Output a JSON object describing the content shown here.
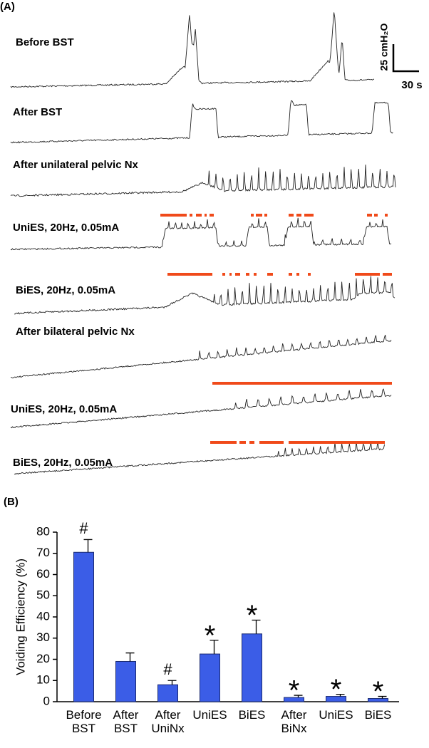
{
  "panel_a": {
    "label": "(A)",
    "trace_labels": [
      "Before BST",
      "After BST",
      "After unilateral pelvic Nx",
      "UniES, 20Hz, 0.05mA",
      "BiES, 20Hz, 0.05mA",
      "After bilateral pelvic Nx",
      "UniES, 20Hz, 0.05mA",
      "BiES, 20Hz, 0.05mA"
    ],
    "scale_y": "25 cmH₂O",
    "scale_x": "30 s"
  },
  "chart_data": {
    "type": "bar",
    "panel_label": "(B)",
    "y_label": "Voiding Efficiency (%)",
    "categories": [
      "Before BST",
      "After BST",
      "After UniNx",
      "UniES",
      "BiES",
      "After BiNx",
      "UniES",
      "BiES"
    ],
    "values": [
      70.5,
      19,
      8,
      22.5,
      32,
      2,
      2.5,
      1.5
    ],
    "errors": [
      6,
      4,
      2,
      6.5,
      6.5,
      1,
      1,
      1
    ],
    "annotations": [
      "#",
      null,
      "#",
      "*",
      "*",
      "*",
      "*",
      "*"
    ],
    "color": "#3b5de7",
    "ylim": [
      0,
      80
    ],
    "yticks": [
      0,
      10,
      20,
      30,
      40,
      50,
      60,
      70,
      80
    ]
  }
}
